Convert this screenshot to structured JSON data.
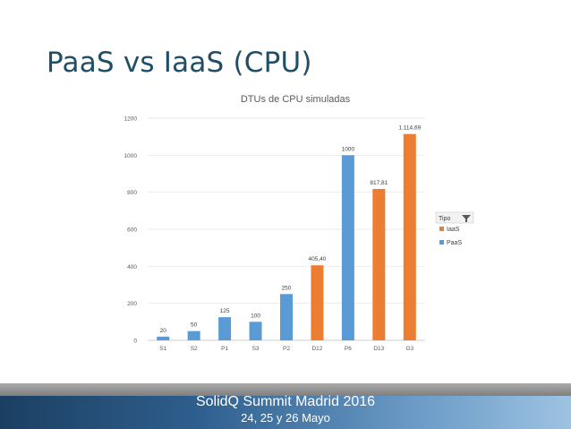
{
  "slide": {
    "title": "PaaS vs IaaS (CPU)"
  },
  "footer": {
    "line1": "SolidQ Summit Madrid 2016",
    "line2": "24, 25 y 26 Mayo"
  },
  "legend": {
    "title": "Tipo",
    "filter_icon": "filter-icon",
    "items": [
      {
        "label": "IaaS",
        "color": "#ed7d31"
      },
      {
        "label": "PaaS",
        "color": "#5b9bd5"
      }
    ]
  },
  "chart_data": {
    "type": "bar",
    "title": "DTUs de CPU simuladas",
    "categories": [
      "S1",
      "S2",
      "P1",
      "S3",
      "P2",
      "D12",
      "P6",
      "D13",
      "G3"
    ],
    "values": [
      20,
      50,
      125,
      100,
      250,
      405.4,
      1000,
      817.81,
      1114.69
    ],
    "labels": [
      "20",
      "50",
      "125",
      "100",
      "250",
      "405,40",
      "1000",
      "817,81",
      "1.114,69"
    ],
    "types": [
      "PaaS",
      "PaaS",
      "PaaS",
      "PaaS",
      "PaaS",
      "IaaS",
      "PaaS",
      "IaaS",
      "IaaS"
    ],
    "colors": {
      "PaaS": "#5b9bd5",
      "IaaS": "#ed7d31"
    },
    "ylim": [
      0,
      1200
    ],
    "yticks": [
      0,
      200,
      400,
      600,
      800,
      1000,
      1200
    ],
    "grid": true,
    "legend_position": "right"
  }
}
